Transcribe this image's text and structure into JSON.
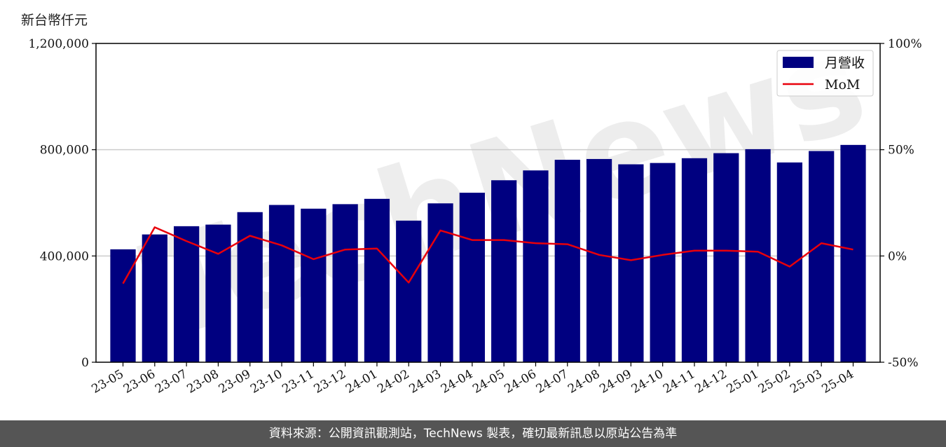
{
  "unit_label": "新台幣仟元",
  "footer_text": "資料來源：公開資訊觀測站，TechNews 製表，確切最新訊息以原站公告為準",
  "watermark": "TechNews",
  "colors": {
    "bar": "#000080",
    "line": "#e8000b",
    "grid": "#cccccc",
    "footer_bg": "#555555"
  },
  "chart_data": {
    "type": "bar",
    "categories": [
      "23-05",
      "23-06",
      "23-07",
      "23-08",
      "23-09",
      "23-10",
      "23-11",
      "23-12",
      "24-01",
      "24-02",
      "24-03",
      "24-04",
      "24-05",
      "24-06",
      "24-07",
      "24-08",
      "24-09",
      "24-10",
      "24-11",
      "24-12",
      "25-01",
      "25-02",
      "25-03",
      "25-04"
    ],
    "series": [
      {
        "name": "月營收",
        "axis": "left",
        "type": "bar",
        "values": [
          425000,
          481000,
          512000,
          518000,
          565000,
          592000,
          578000,
          595000,
          615000,
          533000,
          598000,
          638000,
          685000,
          722000,
          762000,
          765000,
          745000,
          750000,
          768000,
          787000,
          802000,
          752000,
          795000,
          818000
        ]
      },
      {
        "name": "MoM",
        "axis": "right",
        "type": "line",
        "values": [
          -13,
          13.5,
          7,
          1,
          9.5,
          5,
          -1.5,
          3,
          3.5,
          -12.5,
          12,
          7.5,
          7.5,
          6,
          5.5,
          0.5,
          -2,
          0.5,
          2.5,
          2.5,
          2,
          -5,
          6,
          3
        ]
      }
    ],
    "ylim_left": [
      0,
      1200000
    ],
    "yticks_left": [
      "0",
      "400,000",
      "800,000",
      "1,200,000"
    ],
    "yticks_left_values": [
      0,
      400000,
      800000,
      1200000
    ],
    "ylim_right": [
      -50,
      100
    ],
    "yticks_right": [
      "-50%",
      "0%",
      "50%",
      "100%"
    ],
    "yticks_right_values": [
      -50,
      0,
      50,
      100
    ],
    "grid": "horizontal",
    "legend_position": "top-right"
  }
}
